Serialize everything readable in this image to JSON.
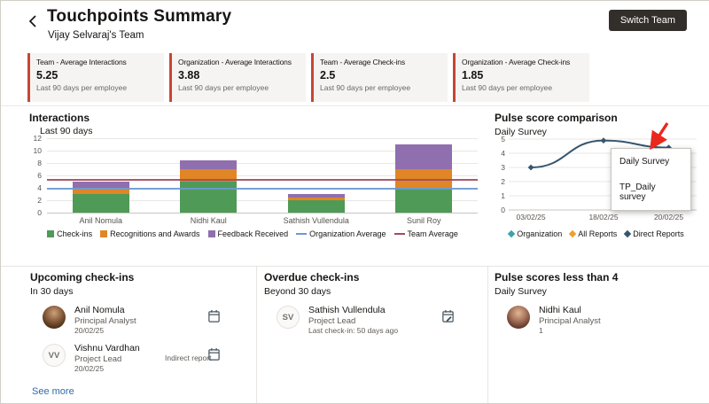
{
  "header": {
    "title": "Touchpoints Summary",
    "subtitle": "Vijay Selvaraj's Team",
    "switch_team_label": "Switch Team"
  },
  "kpis": [
    {
      "label": "Team - Average Interactions",
      "value": "5.25",
      "caption": "Last 90 days per employee"
    },
    {
      "label": "Organization - Average Interactions",
      "value": "3.88",
      "caption": "Last 90 days per employee"
    },
    {
      "label": "Team - Average Check-ins",
      "value": "2.5",
      "caption": "Last 90 days per employee"
    },
    {
      "label": "Organization - Average Check-ins",
      "value": "1.85",
      "caption": "Last 90 days per employee"
    }
  ],
  "chart_data": [
    {
      "type": "bar",
      "stacked": true,
      "title": "Interactions",
      "subtitle": "Last 90 days",
      "categories": [
        "Anil Nomula",
        "Nidhi Kaul",
        "Sathish Vullendula",
        "Sunil Roy"
      ],
      "series": [
        {
          "name": "Check-ins",
          "color": "#4f9a57",
          "values": [
            3,
            5,
            2,
            4
          ]
        },
        {
          "name": "Recognitions and Awards",
          "color": "#e08626",
          "values": [
            1,
            2,
            0.5,
            3
          ]
        },
        {
          "name": "Feedback Received",
          "color": "#8f6fae",
          "values": [
            1,
            1.5,
            0.5,
            4
          ]
        }
      ],
      "reference_lines": [
        {
          "name": "Organization Average",
          "value": 3.88,
          "color": "#6b9bd2"
        },
        {
          "name": "Team Average",
          "value": 5.25,
          "color": "#a14d5e"
        }
      ],
      "ylim": [
        0,
        12
      ],
      "yticks": [
        0,
        2,
        4,
        6,
        8,
        10,
        12
      ],
      "legend_position": "bottom",
      "grid": true
    },
    {
      "type": "line",
      "title": "Pulse score comparison",
      "subtitle": "Daily Survey",
      "x": [
        "03/02/25",
        "18/02/25",
        "20/02/25"
      ],
      "series": [
        {
          "name": "Direct Reports",
          "color": "#35566f",
          "values": [
            3,
            4.9,
            4.4
          ],
          "marker": "diamond"
        }
      ],
      "legend": [
        {
          "name": "Organization",
          "color": "#3aa4a8"
        },
        {
          "name": "All Reports",
          "color": "#eda12f"
        },
        {
          "name": "Direct Reports",
          "color": "#35566f"
        }
      ],
      "ylim": [
        0,
        5
      ],
      "yticks": [
        0,
        1,
        2,
        3,
        4,
        5
      ],
      "legend_position": "bottom",
      "grid": true
    }
  ],
  "pulse_popup": {
    "items": [
      "Daily Survey",
      "TP_Daily survey"
    ]
  },
  "panels": {
    "upcoming": {
      "title": "Upcoming check-ins",
      "subtitle": "In 30 days",
      "rows": [
        {
          "name": "Anil Nomula",
          "role": "Principal Analyst",
          "date": "20/02/25",
          "note": ""
        },
        {
          "initials": "VV",
          "name": "Vishnu Vardhan",
          "role": "Project Lead",
          "date": "20/02/25",
          "note": "Indirect report"
        }
      ],
      "see_more": "See more"
    },
    "overdue": {
      "title": "Overdue check-ins",
      "subtitle": "Beyond 30 days",
      "rows": [
        {
          "initials": "SV",
          "name": "Sathish Vullendula",
          "role": "Project Lead",
          "note": "Last check-in: 50 days ago"
        }
      ]
    },
    "pulse_low": {
      "title": "Pulse scores less than 4",
      "subtitle": "Daily Survey",
      "rows": [
        {
          "name": "Nidhi Kaul",
          "role": "Principal Analyst",
          "count": "1"
        }
      ]
    }
  },
  "colors": {
    "accent_red": "#c74634",
    "switch_button_bg": "#322e2a",
    "link_blue": "#2f6ca8",
    "annotation_arrow": "#e8291c"
  }
}
